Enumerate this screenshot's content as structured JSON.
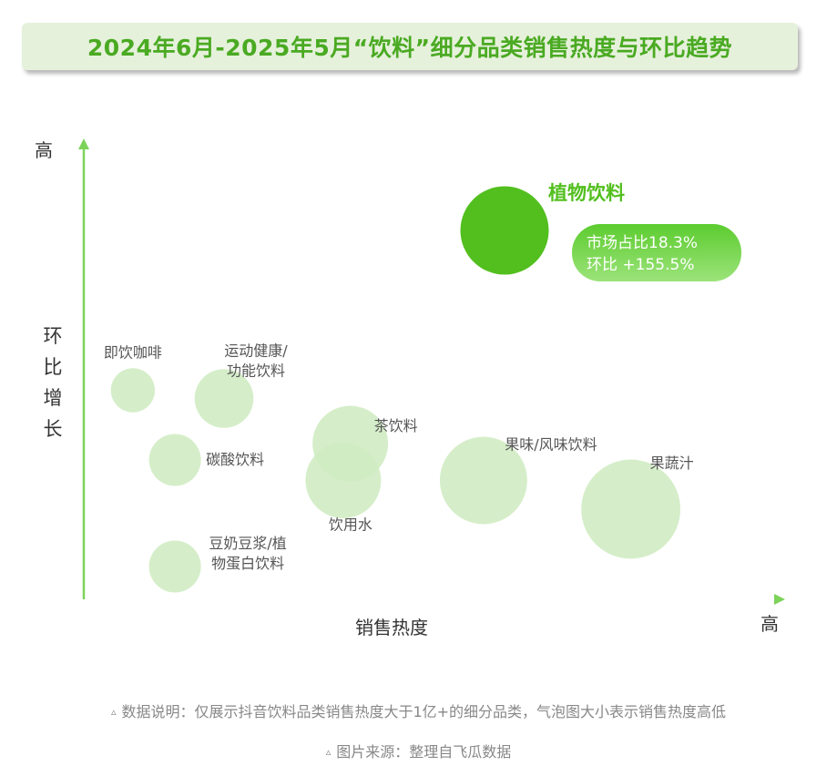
{
  "title": "2024年6月-2025年5月“饮料”细分品类销售热度与环比趋势",
  "chart_data": {
    "type": "bubble",
    "xlabel": "销售热度",
    "ylabel": "环比增长",
    "x_high_label": "高",
    "y_high_label": "高",
    "points": [
      {
        "label": "植物饮料",
        "x": 0.6,
        "y": 0.9,
        "size": 0.75,
        "highlight": true
      },
      {
        "label": "即饮咖啡",
        "x": 0.07,
        "y": 0.51,
        "size": 0.3
      },
      {
        "label": "运动健康/功能饮料",
        "x": 0.2,
        "y": 0.49,
        "size": 0.45
      },
      {
        "label": "碳酸饮料",
        "x": 0.13,
        "y": 0.34,
        "size": 0.38
      },
      {
        "label": "茶饮料",
        "x": 0.38,
        "y": 0.38,
        "size": 0.62
      },
      {
        "label": "饮用水",
        "x": 0.37,
        "y": 0.29,
        "size": 0.62
      },
      {
        "label": "果味/风味饮料",
        "x": 0.57,
        "y": 0.29,
        "size": 0.74
      },
      {
        "label": "果蔬汁",
        "x": 0.78,
        "y": 0.22,
        "size": 0.86
      },
      {
        "label": "豆奶豆浆/植物蛋白饮料",
        "x": 0.13,
        "y": 0.08,
        "size": 0.38
      }
    ],
    "callout": {
      "target": "植物饮料",
      "lines": [
        "市场占比18.3%",
        "环比 +155.5%"
      ]
    },
    "colors": {
      "highlight": "#52bf1e",
      "bubble": "#cfecc2",
      "axis": "#7dd35a",
      "callout": "#6fd245",
      "label": "#555555"
    }
  },
  "notes": {
    "data_note": "数据说明：仅展示抖音饮料品类销售热度大于1亿+的细分品类，气泡图大小表示销售热度高低",
    "source": "图片来源：整理自飞瓜数据",
    "triangle": "▵"
  }
}
